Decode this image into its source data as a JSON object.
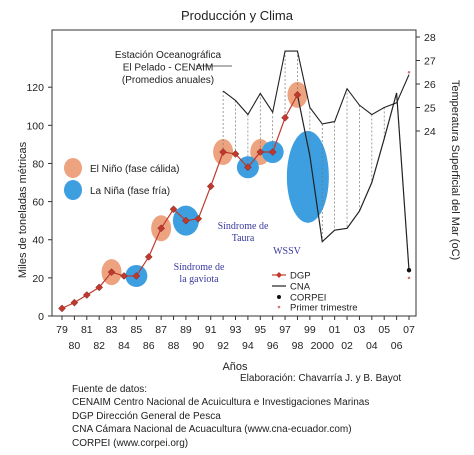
{
  "chart_data": {
    "type": "line",
    "title": "Producción y Clima",
    "xlabel": "Años",
    "ylabel_left": "Miles de toneladas métricas",
    "ylabel_right": "Temperatura Superficial del Mar (oC)",
    "ylim_left": [
      0,
      140
    ],
    "ylim_right": [
      22,
      28
    ],
    "yticks_left": [
      0,
      20,
      40,
      60,
      80,
      100,
      120
    ],
    "yticks_right": [
      24,
      25,
      26,
      27,
      28
    ],
    "x_ticks_top": [
      "79",
      "81",
      "83",
      "85",
      "87",
      "89",
      "91",
      "93",
      "95",
      "97",
      "99",
      "01",
      "03",
      "05",
      "07"
    ],
    "x_ticks_bottom": [
      "80",
      "82",
      "84",
      "86",
      "88",
      "90",
      "92",
      "94",
      "96",
      "98",
      "2000",
      "02",
      "04",
      "06"
    ],
    "annotation_station": [
      "Estación Oceanográfica",
      "El Pelado - CENAIM",
      "(Promedios anuales)"
    ],
    "legend_nino": "El Niño (fase cálida)",
    "legend_nina": "La Niña (fase fría)",
    "legend_series": [
      "DGP",
      "CNA",
      "CORPEI",
      "Primer trimestre"
    ],
    "events": [
      {
        "label": [
          "Síndrome de",
          "la gaviota"
        ]
      },
      {
        "label": [
          "Síndrome de",
          "Taura"
        ]
      },
      {
        "label": [
          "WSSV"
        ]
      }
    ],
    "series": [
      {
        "name": "DGP",
        "x": [
          1979,
          1980,
          1981,
          1982,
          1983,
          1984,
          1985,
          1986,
          1987,
          1988,
          1989,
          1990,
          1991,
          1992,
          1993,
          1994,
          1995,
          1996,
          1997,
          1998
        ],
        "values": [
          4,
          7,
          11,
          15,
          23,
          21,
          21,
          31,
          46,
          56,
          50,
          51,
          68,
          86,
          85,
          78,
          86,
          86,
          104,
          116
        ],
        "color": "#c0392b"
      },
      {
        "name": "CNA",
        "x": [
          1998,
          1999,
          2000,
          2001,
          2002,
          2003,
          2004,
          2005,
          2006
        ],
        "values": [
          116,
          84,
          39,
          45,
          46,
          55,
          70,
          93,
          117
        ],
        "color": "#222222"
      },
      {
        "name": "CORPEI",
        "x": [
          2006,
          2007
        ],
        "values": [
          117,
          24
        ],
        "color": "#222222"
      },
      {
        "name": "Temperatura",
        "axis": "right",
        "x": [
          1992,
          1993,
          1994,
          1995,
          1996,
          1997,
          1998,
          1999,
          2000,
          2001,
          2002,
          2003,
          2004,
          2005,
          2006,
          2007
        ],
        "values": [
          25.7,
          25.3,
          24.7,
          25.6,
          24.8,
          27.4,
          27.4,
          25.0,
          24.3,
          24.4,
          25.8,
          25.1,
          24.7,
          25.0,
          25.2,
          26.4
        ],
        "color": "#222222"
      }
    ],
    "primer_trimestre": {
      "x": 2007,
      "value": 20,
      "temp": 26.5
    },
    "nino_years": [
      1983,
      1987,
      1992,
      1995,
      1998
    ],
    "nina_years": [
      1985,
      1989,
      1994,
      1996,
      1999
    ]
  },
  "credit": "Elaboración: Chavarría J. y  B. Bayot",
  "sources": [
    "Fuente de datos:",
    "CENAIM Centro Nacional de Acuicultura e Investigaciones Marinas",
    "DGP Dirección General  de Pesca",
    "CNA Cámara Nacional de Acuacultura (www.cna-ecuador.com)",
    "CORPEI (www.corpei.org)"
  ],
  "colors": {
    "nino": "#eda37f",
    "nina": "#3d9ee0",
    "dgp": "#c0392b",
    "line": "#222222"
  }
}
